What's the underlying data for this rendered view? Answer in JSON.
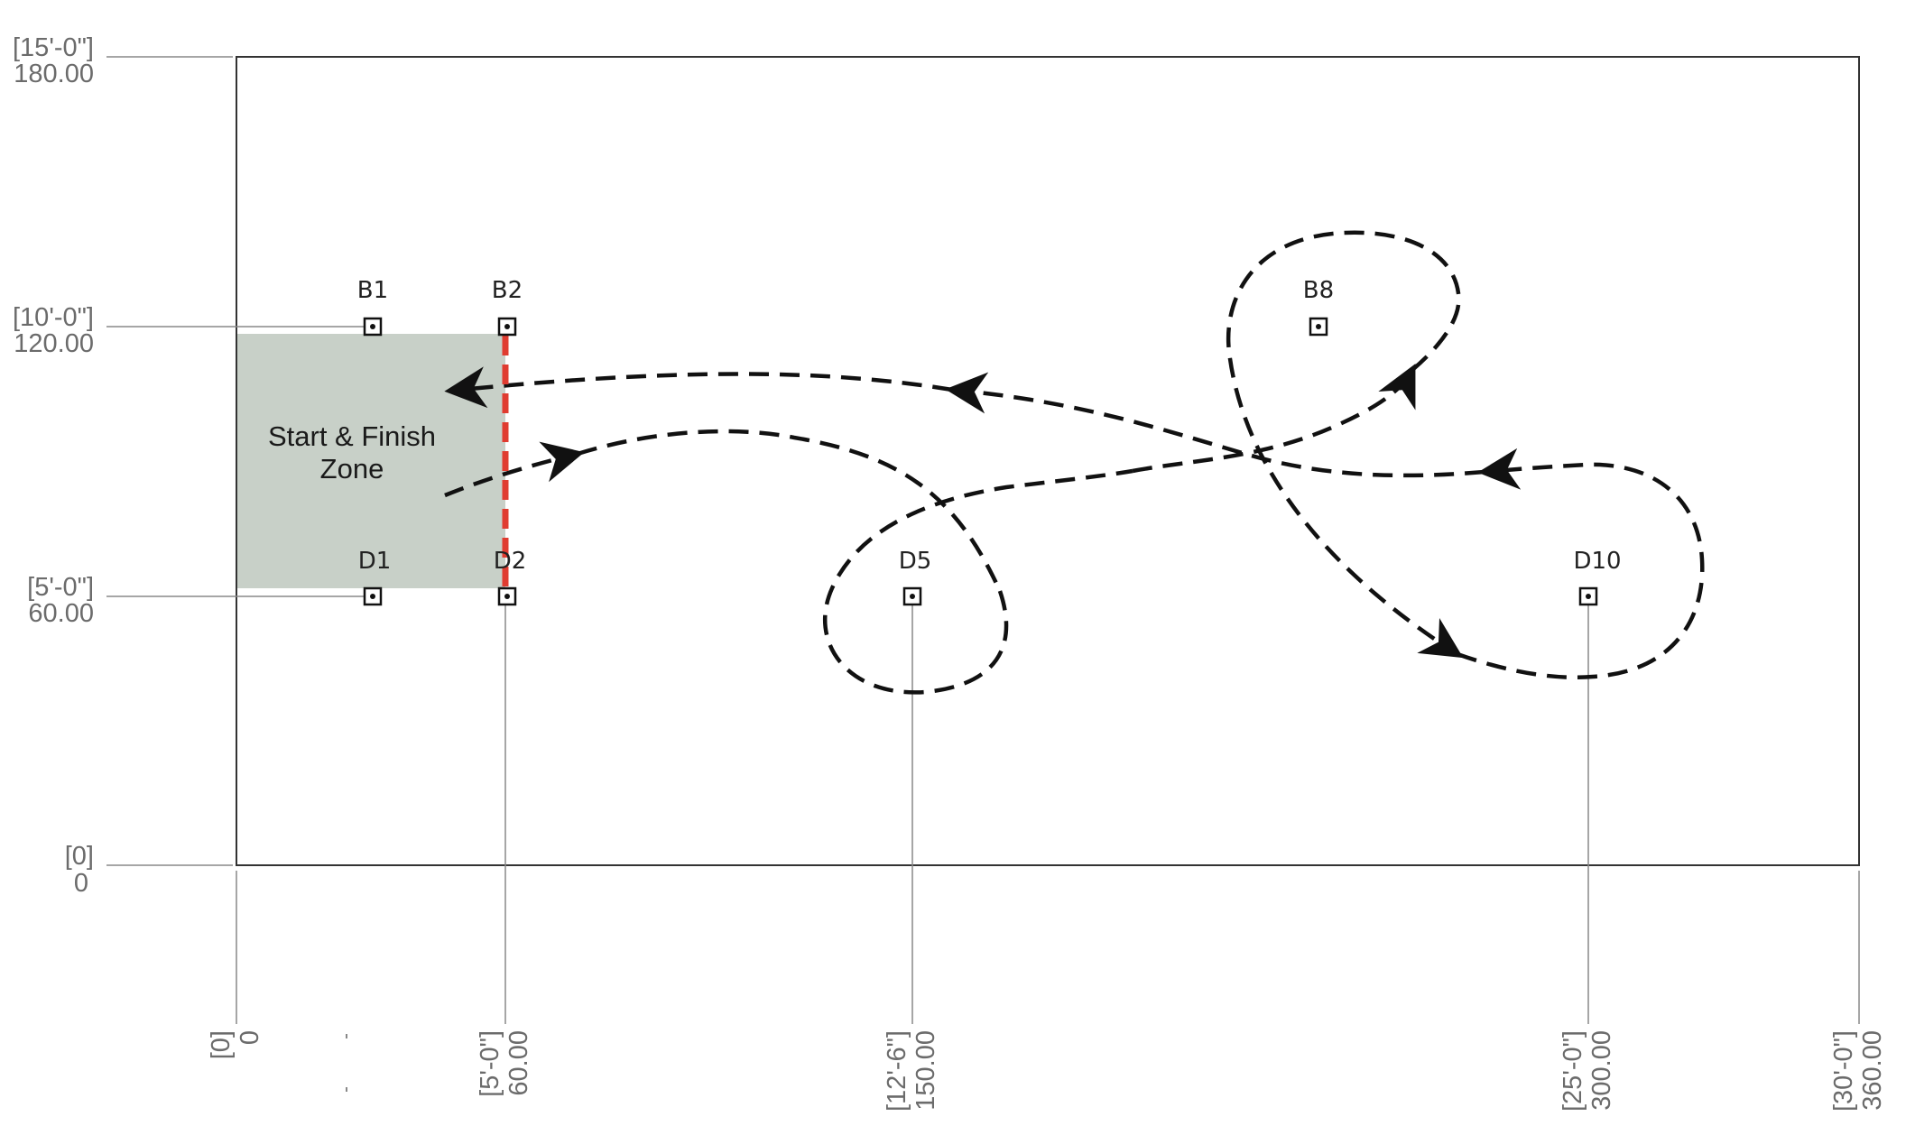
{
  "field": {
    "x_range": [
      0,
      360
    ],
    "y_range": [
      0,
      180
    ],
    "units": "inches"
  },
  "y_dimensions": [
    {
      "value": 180,
      "feet": "[15'-0\"]",
      "inches": "180.00"
    },
    {
      "value": 120,
      "feet": "[10'-0\"]",
      "inches": "120.00"
    },
    {
      "value": 60,
      "feet": "[5'-0\"]",
      "inches": "60.00"
    },
    {
      "value": 0,
      "feet": "[0]",
      "inches": "0"
    }
  ],
  "x_dimensions": [
    {
      "value": 0,
      "feet": "[0]",
      "inches": "0"
    },
    {
      "value": 60,
      "feet": "[5'-0\"]",
      "inches": "60.00"
    },
    {
      "value": 150,
      "feet": "[12'-6\"]",
      "inches": "150.00"
    },
    {
      "value": 300,
      "feet": "[25'-0\"]",
      "inches": "300.00"
    },
    {
      "value": 360,
      "feet": "[30'-0\"]",
      "inches": "360.00"
    }
  ],
  "markers": [
    {
      "id": "B1",
      "label": "B1",
      "x": 30,
      "y": 120
    },
    {
      "id": "B2",
      "label": "B2",
      "x": 60,
      "y": 120
    },
    {
      "id": "B8",
      "label": "B8",
      "x": 240,
      "y": 120
    },
    {
      "id": "D1",
      "label": "D1",
      "x": 30,
      "y": 60
    },
    {
      "id": "D2",
      "label": "D2",
      "x": 60,
      "y": 60
    },
    {
      "id": "D5",
      "label": "D5",
      "x": 150,
      "y": 60
    },
    {
      "id": "D10",
      "label": "D10",
      "x": 300,
      "y": 60
    }
  ],
  "zone": {
    "label_line1": "Start & Finish",
    "label_line2": "Zone",
    "x_range": [
      0,
      60
    ],
    "y_range": [
      62,
      118
    ],
    "fill": "#c8d0c8"
  },
  "finish_line": {
    "x": 60,
    "y_range": [
      62,
      118
    ],
    "color": "#e03c31"
  },
  "path_color": "#111111",
  "frame_color": "#333333"
}
